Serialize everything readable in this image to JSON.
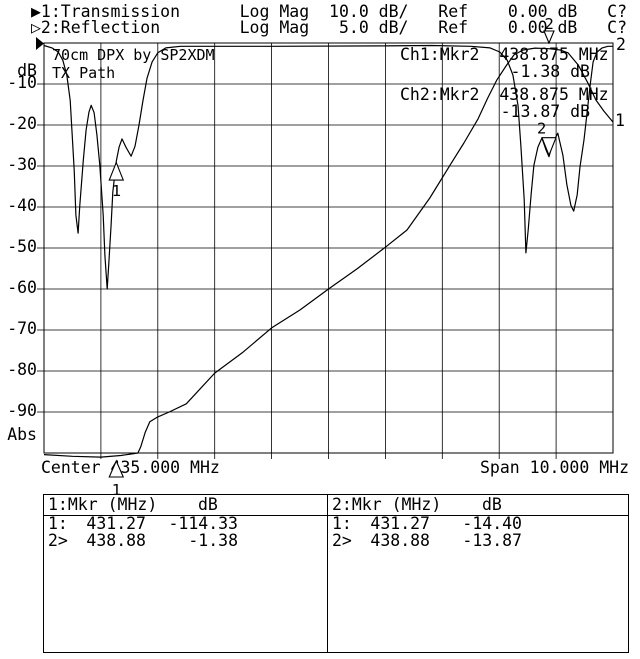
{
  "app": {
    "background": "#ffffff",
    "foreground": "#000000"
  },
  "header": {
    "line1": "▶1:Transmission      Log Mag  10.0 dB/   Ref    0.00 dB   C?",
    "line2": "▷2:Reflection        Log Mag   5.0 dB/   Ref    0.00 dB   C?"
  },
  "graph": {
    "title_line1": "70cm DPX by SP2XDM",
    "title_line2": "TX Path",
    "y_axis_labels": [
      "dB",
      "-10",
      "-20",
      "-30",
      "-40",
      "-50",
      "-60",
      "-70",
      "-80",
      "-90",
      "Abs"
    ],
    "right_edge_labels": {
      "trace2": "2",
      "trace1": "1"
    },
    "readout_ch1_line1": "Ch1:Mkr2  438.875 MHz",
    "readout_ch1_line2": "-1.38 dB",
    "readout_ch2_line1": "Ch2:Mkr2  438.875 MHz",
    "readout_ch2_line2": "-13.87 dB",
    "center_label": "Center 435.000 MHz",
    "span_label": "Span 10.000 MHz"
  },
  "marker_tables": [
    {
      "header_left": "1:Mkr (MHz)",
      "header_right": "dB",
      "rows": [
        {
          "id": "1:",
          "freq": "431.27",
          "val": "-114.33"
        },
        {
          "id": "2>",
          "freq": "438.88",
          "val": "-1.38"
        }
      ]
    },
    {
      "header_left": "2:Mkr (MHz)",
      "header_right": "dB",
      "rows": [
        {
          "id": "1:",
          "freq": "431.27",
          "val": "-14.40"
        },
        {
          "id": "2>",
          "freq": "438.88",
          "val": "-13.87"
        }
      ]
    }
  ],
  "chart_data": {
    "type": "line",
    "title": "70cm DPX by SP2XDM  TX Path",
    "x": {
      "label": "MHz",
      "center": 435.0,
      "span": 10.0,
      "min": 430.0,
      "max": 440.0,
      "divisions": 10
    },
    "channels": [
      {
        "name": "1: Transmission",
        "format": "Log Mag",
        "scale_db_per_div": 10.0,
        "ref_db": 0.0,
        "ymin": -100,
        "ymax": 0
      },
      {
        "name": "2: Reflection",
        "format": "Log Mag",
        "scale_db_per_div": 5.0,
        "ref_db": 0.0,
        "ymin": -50,
        "ymax": 0
      }
    ],
    "grid": {
      "x_divisions": 10,
      "y_divisions": 10
    },
    "series": [
      {
        "name": "transmission",
        "channel": 0,
        "points": [
          [
            430.0,
            -100.4
          ],
          [
            430.5,
            -100.8
          ],
          [
            431.0,
            -101.0
          ],
          [
            431.35,
            -100.6
          ],
          [
            431.65,
            -100.0
          ],
          [
            431.7,
            -98.5
          ],
          [
            431.78,
            -94.9
          ],
          [
            431.86,
            -92.4
          ],
          [
            432.0,
            -91.2
          ],
          [
            432.2,
            -90.0
          ],
          [
            432.5,
            -88.0
          ],
          [
            433.0,
            -80.5
          ],
          [
            433.5,
            -75.4
          ],
          [
            434.0,
            -69.5
          ],
          [
            434.5,
            -65.1
          ],
          [
            435.0,
            -60.0
          ],
          [
            435.5,
            -55.1
          ],
          [
            436.0,
            -49.8
          ],
          [
            436.38,
            -45.6
          ],
          [
            436.78,
            -37.8
          ],
          [
            437.15,
            -29.5
          ],
          [
            437.38,
            -24.4
          ],
          [
            437.63,
            -18.5
          ],
          [
            437.8,
            -13.4
          ],
          [
            437.96,
            -9.0
          ],
          [
            438.12,
            -5.6
          ],
          [
            438.26,
            -2.9
          ],
          [
            438.42,
            -1.7
          ],
          [
            438.63,
            -1.25
          ],
          [
            438.875,
            -1.38
          ],
          [
            439.07,
            -1.7
          ],
          [
            439.21,
            -2.4
          ],
          [
            439.39,
            -5.4
          ],
          [
            439.56,
            -9.8
          ],
          [
            439.7,
            -13.9
          ],
          [
            439.84,
            -16.6
          ],
          [
            440.0,
            -19.3
          ]
        ]
      },
      {
        "name": "reflection",
        "channel": 1,
        "points": [
          [
            430.0,
            -0.3
          ],
          [
            430.14,
            -0.6
          ],
          [
            430.25,
            -1.1
          ],
          [
            430.33,
            -2.1
          ],
          [
            430.4,
            -3.9
          ],
          [
            430.46,
            -7.0
          ],
          [
            430.49,
            -10.6
          ],
          [
            430.53,
            -15.5
          ],
          [
            430.56,
            -21.0
          ],
          [
            430.6,
            -23.2
          ],
          [
            430.63,
            -19.8
          ],
          [
            430.69,
            -14.3
          ],
          [
            430.74,
            -10.6
          ],
          [
            430.79,
            -8.4
          ],
          [
            430.83,
            -7.6
          ],
          [
            430.88,
            -8.5
          ],
          [
            430.93,
            -11.2
          ],
          [
            430.98,
            -14.9
          ],
          [
            431.04,
            -21.0
          ],
          [
            431.07,
            -25.9
          ],
          [
            431.11,
            -30.0
          ],
          [
            431.14,
            -26.7
          ],
          [
            431.18,
            -22.2
          ],
          [
            431.21,
            -18.2
          ],
          [
            431.27,
            -14.4
          ],
          [
            431.32,
            -12.7
          ],
          [
            431.37,
            -11.7
          ],
          [
            431.44,
            -12.7
          ],
          [
            431.53,
            -13.8
          ],
          [
            431.6,
            -12.6
          ],
          [
            431.67,
            -10.0
          ],
          [
            431.74,
            -7.0
          ],
          [
            431.81,
            -4.3
          ],
          [
            431.9,
            -2.3
          ],
          [
            432.0,
            -1.2
          ],
          [
            432.14,
            -0.6
          ],
          [
            432.4,
            -0.4
          ],
          [
            434.0,
            -0.4
          ],
          [
            436.0,
            -0.35
          ],
          [
            436.8,
            -0.3
          ],
          [
            437.5,
            -0.4
          ],
          [
            437.84,
            -0.6
          ],
          [
            438.01,
            -1.1
          ],
          [
            438.14,
            -2.1
          ],
          [
            438.24,
            -3.9
          ],
          [
            438.33,
            -7.6
          ],
          [
            438.38,
            -12.4
          ],
          [
            438.44,
            -19.1
          ],
          [
            438.47,
            -25.6
          ],
          [
            438.51,
            -22.8
          ],
          [
            438.56,
            -18.5
          ],
          [
            438.61,
            -14.9
          ],
          [
            438.68,
            -12.7
          ],
          [
            438.75,
            -11.6
          ],
          [
            438.82,
            -13.0
          ],
          [
            438.875,
            -13.87
          ],
          [
            438.94,
            -12.2
          ],
          [
            439.03,
            -11.0
          ],
          [
            439.12,
            -13.7
          ],
          [
            439.19,
            -17.3
          ],
          [
            439.26,
            -19.8
          ],
          [
            439.31,
            -20.5
          ],
          [
            439.37,
            -18.5
          ],
          [
            439.42,
            -15.1
          ],
          [
            439.49,
            -11.8
          ],
          [
            439.54,
            -8.8
          ],
          [
            439.6,
            -5.1
          ],
          [
            439.65,
            -2.3
          ],
          [
            439.72,
            -1.1
          ],
          [
            439.81,
            -0.6
          ],
          [
            439.91,
            -0.4
          ],
          [
            440.0,
            -0.4
          ]
        ]
      }
    ],
    "markers": [
      {
        "num": "1",
        "freq_mhz": 431.27,
        "ch1_db": -114.33,
        "ch2_db": -14.4,
        "style": "up"
      },
      {
        "num": "2",
        "freq_mhz": 438.875,
        "ch1_db": -1.38,
        "ch2_db": -13.87,
        "style": "down"
      }
    ]
  }
}
